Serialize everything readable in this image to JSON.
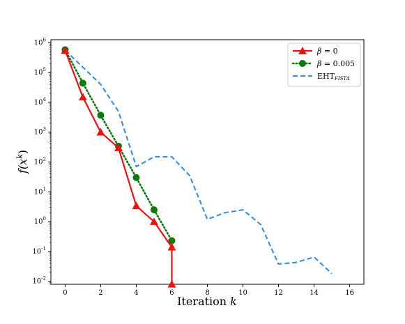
{
  "chart_data": {
    "type": "line",
    "title": "",
    "xlabel": "Iteration ",
    "xlabel_var": "k",
    "ylabel": "f(x",
    "ylabel_sup": "k",
    "ylabel_close": ")",
    "xlim": [
      -0.8,
      16.8
    ],
    "ylim": [
      -2.1,
      6.1
    ],
    "yscale": "log",
    "grid": false,
    "legend_position": "top-right",
    "xticks": [
      0,
      2,
      4,
      6,
      8,
      10,
      12,
      14,
      16
    ],
    "yticks": [
      -2,
      -1,
      0,
      1,
      2,
      3,
      4,
      5,
      6
    ],
    "ytick_base": "10",
    "series": [
      {
        "name_prefix": "β",
        "name_suffix": " = 0",
        "color": "#ee1111",
        "style": "solid",
        "marker": "triangle",
        "x": [
          0,
          1,
          2,
          3,
          4,
          5,
          6,
          6
        ],
        "y": [
          550000,
          15000,
          1000,
          300,
          3.4,
          1.0,
          0.14,
          0.008
        ]
      },
      {
        "name_prefix": "β",
        "name_suffix": " = 0.005",
        "color": "#0a7a0a",
        "style": "dotted",
        "marker": "circle",
        "x": [
          0,
          1,
          2,
          3,
          4,
          5,
          6
        ],
        "y": [
          580000,
          44000,
          3700,
          340,
          30,
          2.5,
          0.23
        ]
      },
      {
        "name_prefix": "EHT",
        "name_sub": "FISTA",
        "color": "#3d8fe8",
        "style": "dashed",
        "marker": "none",
        "x": [
          0,
          1,
          2,
          3,
          4,
          5,
          6,
          7,
          8,
          9,
          10,
          11,
          12,
          13,
          14,
          15
        ],
        "y": [
          560000,
          150000,
          40000,
          5000,
          70,
          150,
          150,
          35,
          1.2,
          2.0,
          2.5,
          0.8,
          0.038,
          0.043,
          0.065,
          0.018
        ]
      }
    ]
  }
}
